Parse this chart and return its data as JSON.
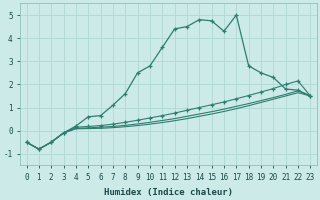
{
  "xlabel": "Humidex (Indice chaleur)",
  "background_color": "#cceae8",
  "grid_color": "#b0d8d5",
  "line_color": "#2e7d70",
  "xlim": [
    -0.5,
    23.5
  ],
  "ylim": [
    -1.5,
    5.5
  ],
  "yticks": [
    -1,
    0,
    1,
    2,
    3,
    4,
    5
  ],
  "xticks": [
    0,
    1,
    2,
    3,
    4,
    5,
    6,
    7,
    8,
    9,
    10,
    11,
    12,
    13,
    14,
    15,
    16,
    17,
    18,
    19,
    20,
    21,
    22,
    23
  ],
  "line1_x": [
    0,
    1,
    2,
    3,
    4,
    5,
    6,
    7,
    8,
    9,
    10,
    11,
    12,
    13,
    14,
    15,
    16,
    17,
    18,
    19,
    20,
    21,
    22,
    23
  ],
  "line1_y": [
    -0.5,
    -0.8,
    -0.5,
    -0.1,
    0.2,
    0.6,
    0.65,
    1.1,
    1.6,
    2.5,
    2.8,
    3.6,
    4.4,
    4.5,
    4.8,
    4.75,
    4.3,
    5.0,
    2.8,
    2.5,
    2.3,
    1.8,
    1.75,
    1.5
  ],
  "line2_x": [
    0,
    1,
    2,
    3,
    4,
    5,
    6,
    7,
    8,
    9,
    10,
    11,
    12,
    13,
    14,
    15,
    16,
    17,
    18,
    19,
    20,
    21,
    22,
    23
  ],
  "line2_y": [
    -0.5,
    -0.8,
    -0.5,
    -0.1,
    0.15,
    0.18,
    0.22,
    0.28,
    0.36,
    0.45,
    0.55,
    0.65,
    0.76,
    0.88,
    1.0,
    1.12,
    1.24,
    1.38,
    1.52,
    1.67,
    1.82,
    2.0,
    2.15,
    1.5
  ],
  "line3_x": [
    0,
    1,
    2,
    3,
    4,
    5,
    6,
    7,
    8,
    9,
    10,
    11,
    12,
    13,
    14,
    15,
    16,
    17,
    18,
    19,
    20,
    21,
    22,
    23
  ],
  "line3_y": [
    -0.5,
    -0.8,
    -0.5,
    -0.1,
    0.1,
    0.12,
    0.15,
    0.18,
    0.23,
    0.29,
    0.36,
    0.44,
    0.52,
    0.62,
    0.72,
    0.82,
    0.93,
    1.05,
    1.17,
    1.3,
    1.43,
    1.57,
    1.72,
    1.5
  ],
  "line4_x": [
    0,
    1,
    2,
    3,
    4,
    5,
    6,
    7,
    8,
    9,
    10,
    11,
    12,
    13,
    14,
    15,
    16,
    17,
    18,
    19,
    20,
    21,
    22,
    23
  ],
  "line4_y": [
    -0.5,
    -0.8,
    -0.5,
    -0.1,
    0.08,
    0.09,
    0.1,
    0.13,
    0.17,
    0.22,
    0.28,
    0.35,
    0.43,
    0.52,
    0.62,
    0.72,
    0.83,
    0.95,
    1.08,
    1.22,
    1.36,
    1.5,
    1.64,
    1.5
  ]
}
